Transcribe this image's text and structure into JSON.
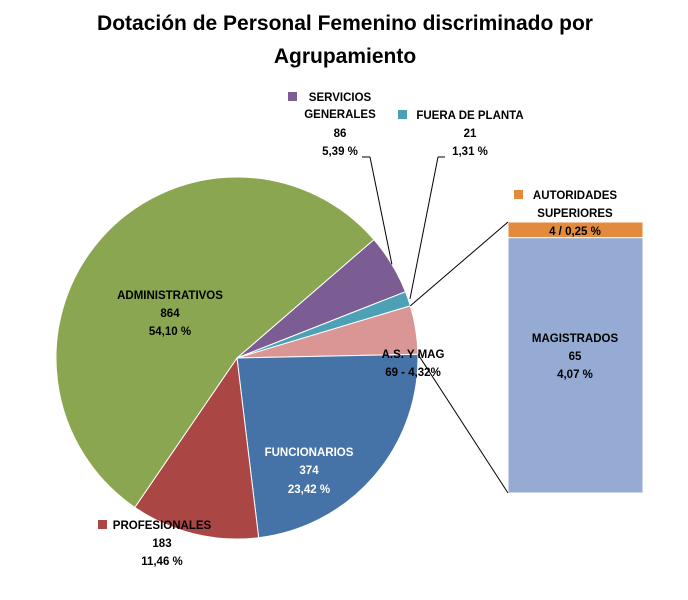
{
  "chart_data": {
    "type": "pie",
    "title_line1": "Dotación de Personal Femenino discriminado  por",
    "title_line2": "Agrupamiento",
    "slices": [
      {
        "name": "ADMINISTRATIVOS",
        "value": 864,
        "percent_text": "54,10 %",
        "color": "#8BA650"
      },
      {
        "name": "SERVICIOS GENERALES",
        "name_line1": "SERVICIOS",
        "name_line2": "GENERALES",
        "value": 86,
        "percent_text": "5,39 %",
        "color": "#7B5D93"
      },
      {
        "name": "FUERA DE PLANTA",
        "value": 21,
        "percent_text": "1,31 %",
        "color": "#4CA1B6"
      },
      {
        "name": "A.S. Y MAG",
        "value": 69,
        "label_text": "69  - 4,32%",
        "color": "#D99694"
      },
      {
        "name": "FUNCIONARIOS",
        "value": 374,
        "percent_text": "23,42 %",
        "color": "#4572A7"
      },
      {
        "name": "PROFESIONALES",
        "value": 183,
        "percent_text": "11,46 %",
        "color": "#AA4643"
      }
    ],
    "breakdown": {
      "of": "A.S. Y MAG",
      "parts": [
        {
          "name": "AUTORIDADES SUPERIORES",
          "name_line1": "AUTORIDADES",
          "name_line2": "SUPERIORES",
          "value": 4,
          "label_text": "4 / 0,25 %",
          "color": "#E28B3D"
        },
        {
          "name": "MAGISTRADOS",
          "value": 65,
          "percent_text": "4,07 %",
          "color": "#95ABD3"
        }
      ]
    },
    "legend_marker_label": "■"
  }
}
